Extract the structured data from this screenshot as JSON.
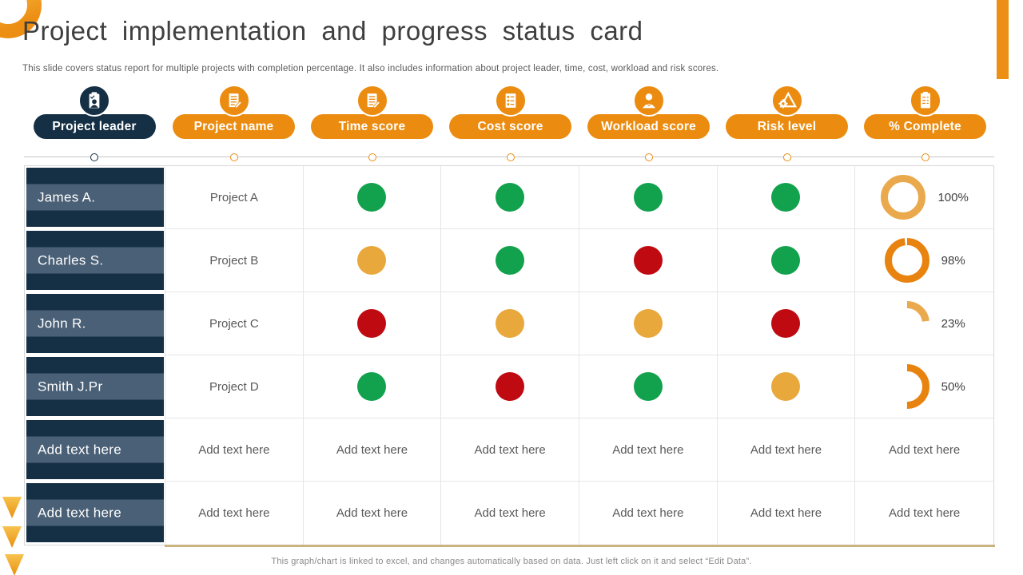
{
  "title": "Project implementation and progress status card",
  "subtitle": "This slide covers status report for multiple projects with completion percentage. It also includes information about project leader, time, cost, workload and risk scores.",
  "footer": "This graph/chart is linked to excel,  and changes automatically based on data. Just left click on it and select “Edit Data”.",
  "accent_colors": {
    "orange": "#EB8C10",
    "navy": "#152F45",
    "navy_band": "#4A6076",
    "tan_line": "#C9B481",
    "grid_line": "#E6E6E6"
  },
  "status_colors": {
    "green": "#12A14C",
    "amber": "#E9A83C",
    "red": "#BE0A10"
  },
  "table": {
    "columns": [
      {
        "label": "Project leader",
        "slug": "project-leader",
        "icon": "clipboard-person-icon",
        "color": "#152F45"
      },
      {
        "label": "Project name",
        "slug": "project-name",
        "icon": "document-pencil-icon",
        "color": "#EB8C10"
      },
      {
        "label": "Time score",
        "slug": "time-score",
        "icon": "document-pencil-icon",
        "color": "#EB8C10"
      },
      {
        "label": "Cost score",
        "slug": "cost-score",
        "icon": "checklist-icon",
        "color": "#EB8C10"
      },
      {
        "label": "Workload score",
        "slug": "workload-score",
        "icon": "person-icon",
        "color": "#EB8C10"
      },
      {
        "label": "Risk level",
        "slug": "risk-level",
        "icon": "warning-gear-icon",
        "color": "#EB8C10"
      },
      {
        "label": "% Complete",
        "slug": "percent-complete",
        "icon": "clipboard-list-icon",
        "color": "#EB8C10"
      }
    ],
    "rows": [
      {
        "leader": "James A.",
        "project": "Project A",
        "time": "green",
        "cost": "green",
        "workload": "green",
        "risk": "green",
        "complete": {
          "pct": 100,
          "label": "100%",
          "color": "#EAA94C"
        }
      },
      {
        "leader": "Charles S.",
        "project": "Project B",
        "time": "amber",
        "cost": "green",
        "workload": "red",
        "risk": "green",
        "complete": {
          "pct": 98,
          "label": "98%",
          "color": "#E8830F"
        }
      },
      {
        "leader": "John R.",
        "project": "Project C",
        "time": "red",
        "cost": "amber",
        "workload": "amber",
        "risk": "red",
        "complete": {
          "pct": 23,
          "label": "23%",
          "color": "#EAA94C"
        }
      },
      {
        "leader": "Smith J.Pr",
        "project": "Project D",
        "time": "green",
        "cost": "red",
        "workload": "green",
        "risk": "amber",
        "complete": {
          "pct": 50,
          "label": "50%",
          "color": "#E8830F"
        }
      },
      {
        "leader": "Add text here",
        "project": "Add text here",
        "time": "Add text here",
        "cost": "Add text here",
        "workload": "Add text here",
        "risk": "Add text here",
        "complete": {
          "text": "Add text here"
        }
      },
      {
        "leader": "Add text here",
        "project": "Add text here",
        "time": "Add text here",
        "cost": "Add text here",
        "workload": "Add text here",
        "risk": "Add text here",
        "complete": {
          "text": "Add text here"
        }
      }
    ]
  }
}
